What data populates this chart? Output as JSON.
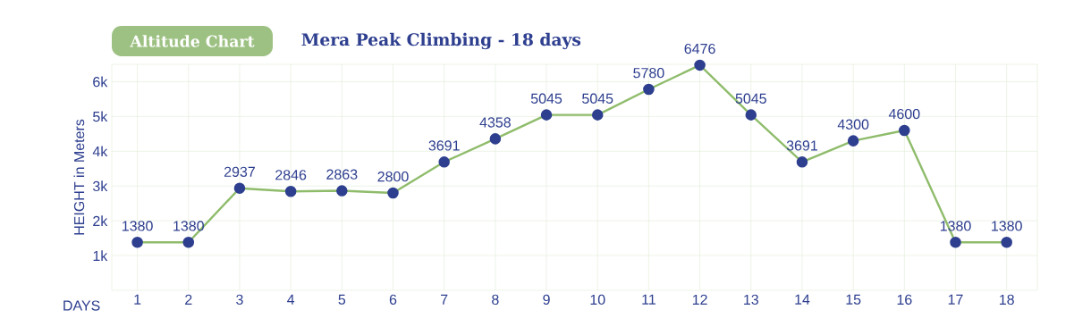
{
  "chart_data": {
    "type": "line",
    "title": "Altitude Chart",
    "subtitle": "Mera Peak Climbing - 18 days",
    "xlabel": "DAYS",
    "ylabel": "HEIGHT in Meters",
    "x": [
      1,
      2,
      3,
      4,
      5,
      6,
      7,
      8,
      9,
      10,
      11,
      12,
      13,
      14,
      15,
      16,
      17,
      18
    ],
    "series": [
      {
        "color": "#8fbc6b",
        "values": [
          1380,
          1380,
          2937,
          2846,
          2863,
          2800,
          3691,
          4358,
          5045,
          5045,
          5780,
          6476,
          5045,
          3691,
          4300,
          4600,
          1380,
          1380
        ]
      }
    ],
    "xlim": [
      0.5,
      18.6
    ],
    "xticks": [
      1,
      2,
      3,
      4,
      5,
      6,
      7,
      8,
      9,
      10,
      11,
      12,
      13,
      14,
      15,
      16,
      17,
      18
    ],
    "ylim": [
      0,
      6500
    ],
    "yticks": [
      {
        "value": 1000,
        "label": "1k"
      },
      {
        "value": 2000,
        "label": "2k"
      },
      {
        "value": 3000,
        "label": "3k"
      },
      {
        "value": 4000,
        "label": "4k"
      },
      {
        "value": 5000,
        "label": "5k"
      },
      {
        "value": 6000,
        "label": "6k"
      }
    ],
    "grid": true,
    "marker": "circle",
    "line_style": "solid",
    "data_labels": true
  }
}
